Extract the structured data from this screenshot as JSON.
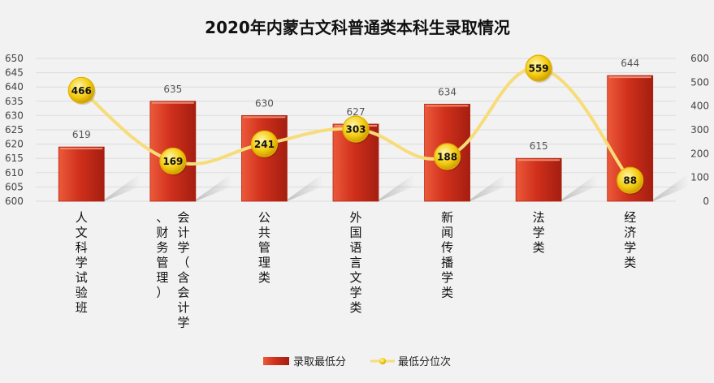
{
  "chart_data": {
    "type": "bar",
    "title": "2020年内蒙古文科普通类本科生录取情况",
    "categories": [
      [
        "人",
        "文",
        "科",
        "学",
        "试",
        "验",
        "班"
      ],
      [
        "会",
        "计",
        "学",
        "（",
        "含",
        "会",
        "计",
        "学",
        "、",
        "财",
        "务",
        "管",
        "理",
        "）"
      ],
      [
        "公",
        "共",
        "管",
        "理",
        "类"
      ],
      [
        "外",
        "国",
        "语",
        "言",
        "文",
        "学",
        "类"
      ],
      [
        "新",
        "闻",
        "传",
        "播",
        "学",
        "类"
      ],
      [
        "法",
        "学",
        "类"
      ],
      [
        "经",
        "济",
        "学",
        "类"
      ]
    ],
    "series": [
      {
        "name": "录取最低分",
        "type": "bar",
        "axis": "left",
        "values": [
          619,
          635,
          630,
          627,
          634,
          615,
          644
        ],
        "color": "#d0301c"
      },
      {
        "name": "最低分位次",
        "type": "line",
        "axis": "right",
        "values": [
          466,
          169,
          241,
          303,
          188,
          559,
          88
        ],
        "color": "#f7dc7a",
        "marker_color": "#f2c200"
      }
    ],
    "y_left": {
      "ylim": [
        600,
        650
      ],
      "ticks": [
        "600",
        "605",
        "610",
        "615",
        "620",
        "625",
        "630",
        "635",
        "640",
        "645",
        "650"
      ]
    },
    "y_right": {
      "ylim": [
        0,
        600
      ],
      "ticks": [
        "0",
        "100",
        "200",
        "300",
        "400",
        "500",
        "600"
      ]
    },
    "grid": true,
    "legend_position": "bottom"
  }
}
